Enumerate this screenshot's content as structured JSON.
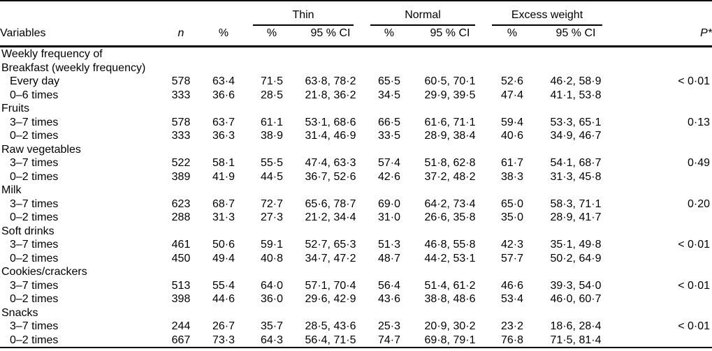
{
  "table": {
    "groups": [
      {
        "label": "Thin"
      },
      {
        "label": "Normal"
      },
      {
        "label": "Excess weight"
      }
    ],
    "col_headers": {
      "variables": "Variables",
      "n": "n",
      "pct": "%",
      "sub_pct": "%",
      "sub_ci": "95 % CI",
      "p": "P*"
    },
    "rows": [
      {
        "type": "section",
        "label": "Weekly frequency of"
      },
      {
        "type": "section",
        "label": "Breakfast (weekly frequency)"
      },
      {
        "type": "data",
        "label": "Every day",
        "n": "578",
        "pct": "63·4",
        "thin_pct": "71·5",
        "thin_ci": "63·8, 78·2",
        "normal_pct": "65·5",
        "normal_ci": "60·5, 70·1",
        "excess_pct": "52·6",
        "excess_ci": "46·2, 58·9",
        "p": "< 0·01"
      },
      {
        "type": "data",
        "label": "0–6 times",
        "n": "333",
        "pct": "36·6",
        "thin_pct": "28·5",
        "thin_ci": "21·8, 36·2",
        "normal_pct": "34·5",
        "normal_ci": "29·9, 39·5",
        "excess_pct": "47·4",
        "excess_ci": "41·1, 53·8",
        "p": ""
      },
      {
        "type": "section",
        "label": "Fruits"
      },
      {
        "type": "data",
        "label": "3–7 times",
        "n": "578",
        "pct": "63·7",
        "thin_pct": "61·1",
        "thin_ci": "53·1, 68·6",
        "normal_pct": "66·5",
        "normal_ci": "61·6, 71·1",
        "excess_pct": "59·4",
        "excess_ci": "53·3, 65·1",
        "p": "0·13"
      },
      {
        "type": "data",
        "label": "0–2 times",
        "n": "333",
        "pct": "36·3",
        "thin_pct": "38·9",
        "thin_ci": "31·4, 46·9",
        "normal_pct": "33·5",
        "normal_ci": "28·9, 38·4",
        "excess_pct": "40·6",
        "excess_ci": "34·9, 46·7",
        "p": ""
      },
      {
        "type": "section",
        "label": "Raw vegetables"
      },
      {
        "type": "data",
        "label": "3–7 times",
        "n": "522",
        "pct": "58·1",
        "thin_pct": "55·5",
        "thin_ci": "47·4, 63·3",
        "normal_pct": "57·4",
        "normal_ci": "51·8, 62·8",
        "excess_pct": "61·7",
        "excess_ci": "54·1, 68·7",
        "p": "0·49"
      },
      {
        "type": "data",
        "label": "0–2 times",
        "n": "389",
        "pct": "41·9",
        "thin_pct": "44·5",
        "thin_ci": "36·7, 52·6",
        "normal_pct": "42·6",
        "normal_ci": "37·2, 48·2",
        "excess_pct": "38·3",
        "excess_ci": "31·3, 45·8",
        "p": ""
      },
      {
        "type": "section",
        "label": "Milk"
      },
      {
        "type": "data",
        "label": "3–7 times",
        "n": "623",
        "pct": "68·7",
        "thin_pct": "72·7",
        "thin_ci": "65·6, 78·7",
        "normal_pct": "69·0",
        "normal_ci": "64·2, 73·4",
        "excess_pct": "65·0",
        "excess_ci": "58·3, 71·1",
        "p": "0·20"
      },
      {
        "type": "data",
        "label": "0–2 times",
        "n": "288",
        "pct": "31·3",
        "thin_pct": "27·3",
        "thin_ci": "21·2, 34·4",
        "normal_pct": "31·0",
        "normal_ci": "26·6, 35·8",
        "excess_pct": "35·0",
        "excess_ci": "28·9, 41·7",
        "p": ""
      },
      {
        "type": "section",
        "label": "Soft drinks"
      },
      {
        "type": "data",
        "label": "3–7 times",
        "n": "461",
        "pct": "50·6",
        "thin_pct": "59·1",
        "thin_ci": "52·7, 65·3",
        "normal_pct": "51·3",
        "normal_ci": "46·8, 55·8",
        "excess_pct": "42·3",
        "excess_ci": "35·1, 49·8",
        "p": "< 0·01"
      },
      {
        "type": "data",
        "label": "0–2 times",
        "n": "450",
        "pct": "49·4",
        "thin_pct": "40·8",
        "thin_ci": "34·7, 47·2",
        "normal_pct": "48·7",
        "normal_ci": "44·2, 53·1",
        "excess_pct": "57·7",
        "excess_ci": "50·2, 64·9",
        "p": ""
      },
      {
        "type": "section",
        "label": "Cookies/crackers"
      },
      {
        "type": "data",
        "label": "3–7 times",
        "n": "513",
        "pct": "55·4",
        "thin_pct": "64·0",
        "thin_ci": "57·1, 70·4",
        "normal_pct": "56·4",
        "normal_ci": "51·4, 61·2",
        "excess_pct": "46·6",
        "excess_ci": "39·3, 54·0",
        "p": "< 0·01"
      },
      {
        "type": "data",
        "label": "0–2 times",
        "n": "398",
        "pct": "44·6",
        "thin_pct": "36·0",
        "thin_ci": "29·6, 42·9",
        "normal_pct": "43·6",
        "normal_ci": "38·8, 48·6",
        "excess_pct": "53·4",
        "excess_ci": "46·0, 60·7",
        "p": ""
      },
      {
        "type": "section",
        "label": "Snacks"
      },
      {
        "type": "data",
        "label": "3–7 times",
        "n": "244",
        "pct": "26·7",
        "thin_pct": "35·7",
        "thin_ci": "28·5, 43·6",
        "normal_pct": "25·3",
        "normal_ci": "20·9, 30·2",
        "excess_pct": "23·2",
        "excess_ci": "18·6, 28·4",
        "p": "< 0·01"
      },
      {
        "type": "data",
        "label": "0–2 times",
        "n": "667",
        "pct": "73·3",
        "thin_pct": "64·3",
        "thin_ci": "56·4, 71·5",
        "normal_pct": "74·7",
        "normal_ci": "69·8, 79·1",
        "excess_pct": "76·8",
        "excess_ci": "71·5, 81·4",
        "p": ""
      }
    ],
    "colors": {
      "text": "#000000",
      "rule": "#000000",
      "background": "#ffffff"
    }
  }
}
